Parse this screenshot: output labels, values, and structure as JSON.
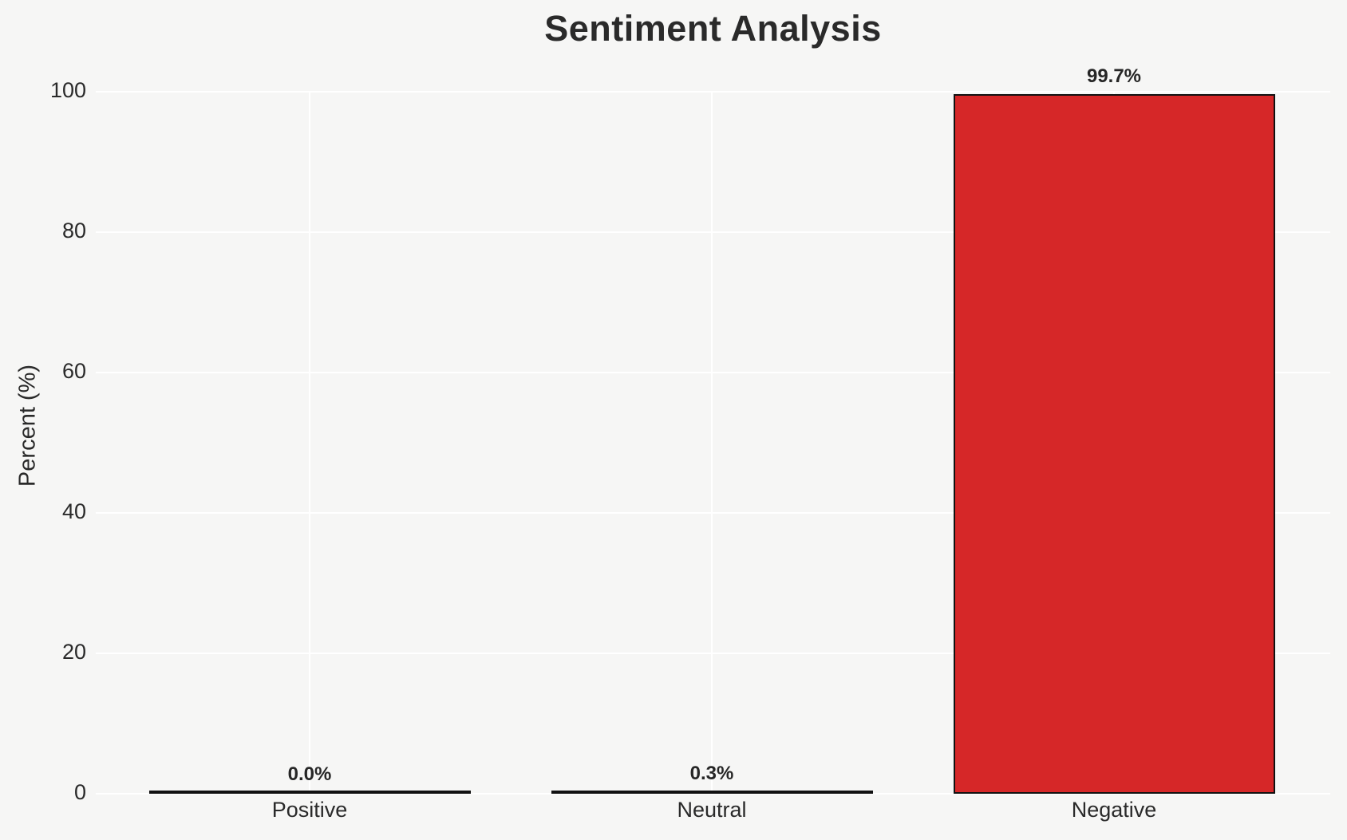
{
  "chart_data": {
    "type": "bar",
    "title": "Sentiment Analysis",
    "xlabel": "",
    "ylabel": "Percent (%)",
    "categories": [
      "Positive",
      "Neutral",
      "Negative"
    ],
    "values": [
      0.0,
      0.3,
      99.7
    ],
    "data_labels": [
      "0.0%",
      "0.3%",
      "99.7%"
    ],
    "yticks": [
      "0",
      "20",
      "40",
      "60",
      "80",
      "100"
    ],
    "ytick_values": [
      0,
      20,
      40,
      60,
      80,
      100
    ],
    "ylim": [
      0,
      100
    ],
    "grid": "on",
    "legend": "none",
    "colors": {
      "figure_background": "#f6f6f5",
      "gridline": "#ffffff",
      "bar_edge": "#111111",
      "bar_fill_positive": "none",
      "bar_fill_neutral": "none",
      "bar_fill_negative": "#d62728",
      "text": "#2a2a2a"
    }
  }
}
